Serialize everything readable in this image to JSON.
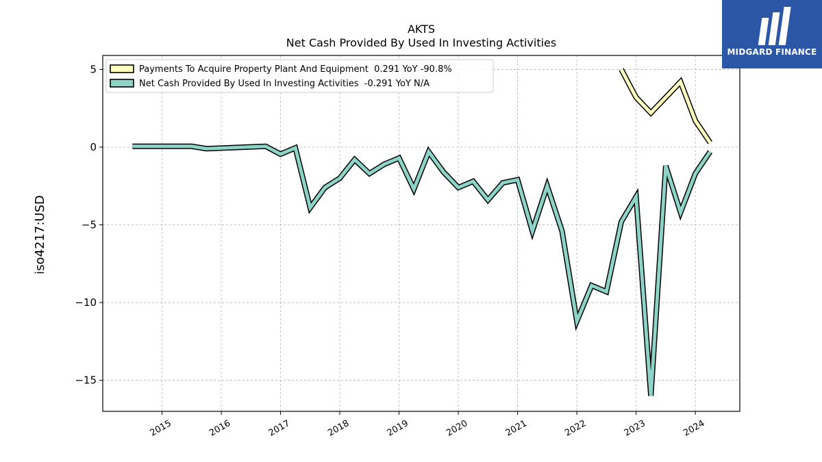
{
  "logo": {
    "text": "MIDGARD FINANCE",
    "icon": "midgard-logo-icon",
    "background": "#2b57a6"
  },
  "chart_data": {
    "type": "line",
    "title": "AKTS",
    "subtitle": "Net Cash Provided By Used In Investing Activities",
    "ylabel": "iso4217:USD",
    "xlabel": "",
    "xlim": [
      2014.0,
      2024.75
    ],
    "ylim": [
      -17.0,
      5.9
    ],
    "yticks": [
      5,
      0,
      -5,
      -10,
      -15
    ],
    "ytick_labels": [
      "5",
      "0",
      "−5",
      "−10",
      "−15"
    ],
    "xticks": [
      "2015",
      "2016",
      "2017",
      "2018",
      "2019",
      "2020",
      "2021",
      "2022",
      "2023",
      "2024"
    ],
    "grid": true,
    "legend_position": "top-left",
    "series": [
      {
        "name": "Payments To Acquire Property Plant And Equipment",
        "legend_label": "Payments To Acquire Property Plant And Equipment  0.291 YoY -90.8%",
        "color": "#ffffc0",
        "points": [
          [
            2022.75,
            5.0
          ],
          [
            2023.0,
            3.2
          ],
          [
            2023.25,
            2.2
          ],
          [
            2023.5,
            3.2
          ],
          [
            2023.75,
            4.2
          ],
          [
            2024.0,
            1.7
          ],
          [
            2024.25,
            0.29
          ]
        ]
      },
      {
        "name": "Net Cash Provided By Used In Investing Activities",
        "legend_label": "Net Cash Provided By Used In Investing Activities  -0.291 YoY N/A",
        "color": "#8dd3c7",
        "points": [
          [
            2014.5,
            0.05
          ],
          [
            2015.5,
            0.05
          ],
          [
            2015.75,
            -0.1
          ],
          [
            2016.75,
            0.05
          ],
          [
            2017.0,
            -0.45
          ],
          [
            2017.25,
            -0.05
          ],
          [
            2017.5,
            -3.9
          ],
          [
            2017.75,
            -2.6
          ],
          [
            2018.0,
            -2.0
          ],
          [
            2018.25,
            -0.8
          ],
          [
            2018.5,
            -1.7
          ],
          [
            2018.75,
            -1.1
          ],
          [
            2019.0,
            -0.7
          ],
          [
            2019.25,
            -2.7
          ],
          [
            2019.5,
            -0.3
          ],
          [
            2019.75,
            -1.6
          ],
          [
            2020.0,
            -2.6
          ],
          [
            2020.25,
            -2.2
          ],
          [
            2020.5,
            -3.4
          ],
          [
            2020.75,
            -2.3
          ],
          [
            2021.0,
            -2.1
          ],
          [
            2021.25,
            -5.4
          ],
          [
            2021.5,
            -2.5
          ],
          [
            2021.75,
            -5.4
          ],
          [
            2022.0,
            -11.2
          ],
          [
            2022.25,
            -8.9
          ],
          [
            2022.5,
            -9.3
          ],
          [
            2022.75,
            -4.8
          ],
          [
            2023.0,
            -3.2
          ],
          [
            2023.25,
            -16.0
          ],
          [
            2023.5,
            -1.2
          ],
          [
            2023.75,
            -4.2
          ],
          [
            2024.0,
            -1.7
          ],
          [
            2024.25,
            -0.29
          ]
        ]
      }
    ]
  }
}
